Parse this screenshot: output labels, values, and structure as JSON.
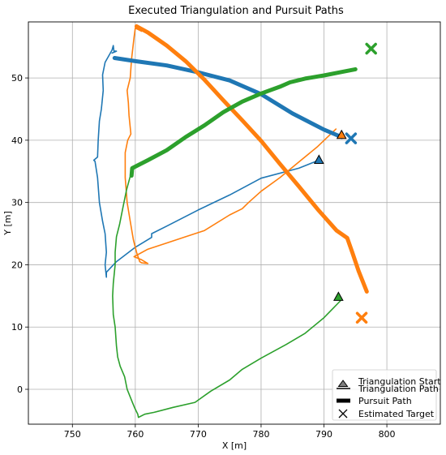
{
  "chart_data": {
    "type": "line",
    "title": "Executed Triangulation and Pursuit Paths",
    "xlabel": "X [m]",
    "ylabel": "Y [m]",
    "xlim": [
      743,
      808.5
    ],
    "ylim": [
      -5.6,
      59
    ],
    "xticks": [
      750,
      760,
      770,
      780,
      790,
      800
    ],
    "yticks": [
      0,
      10,
      20,
      30,
      40,
      50
    ],
    "grid": true,
    "legend_position": "bottom-right",
    "legend": [
      {
        "key": "start",
        "label": "Triangulation Start"
      },
      {
        "key": "tri",
        "label": "Triangulation Path"
      },
      {
        "key": "pursuit",
        "label": "Pursuit Path"
      },
      {
        "key": "target",
        "label": "Estimated Target"
      }
    ],
    "colors": {
      "blue": "#1f77b4",
      "orange": "#ff7f0e",
      "green": "#2ca02c"
    },
    "series": [
      {
        "color": "blue",
        "start": [
          789.2,
          36.8
        ],
        "target": [
          794.3,
          40.3
        ],
        "triangulation_path": [
          [
            789.2,
            36.8
          ],
          [
            786,
            35.5
          ],
          [
            780,
            33.9
          ],
          [
            775,
            31.2
          ],
          [
            770,
            28.8
          ],
          [
            765,
            26.2
          ],
          [
            762.6,
            25
          ],
          [
            762.6,
            24.4
          ],
          [
            760,
            22.8
          ],
          [
            757,
            20.5
          ],
          [
            755.4,
            18.8
          ],
          [
            755.4,
            18
          ],
          [
            755.2,
            20
          ],
          [
            755.4,
            22
          ],
          [
            755.2,
            25
          ],
          [
            754.8,
            27
          ],
          [
            754.3,
            30
          ],
          [
            754,
            34
          ],
          [
            753.6,
            36.6
          ],
          [
            753.4,
            36.8
          ],
          [
            754,
            37.3
          ],
          [
            754.1,
            40
          ],
          [
            754.3,
            43.1
          ],
          [
            754.6,
            45
          ],
          [
            754.9,
            48
          ],
          [
            754.8,
            50.5
          ],
          [
            755.2,
            52.5
          ],
          [
            756.3,
            54.5
          ],
          [
            756.5,
            55.2
          ],
          [
            756.6,
            54.3
          ],
          [
            757,
            54.3
          ],
          [
            756.3,
            54
          ]
        ],
        "pursuit_path": [
          [
            756.7,
            53.2
          ],
          [
            760,
            52.7
          ],
          [
            765,
            52
          ],
          [
            770,
            50.9
          ],
          [
            775,
            49.6
          ],
          [
            780,
            47.4
          ],
          [
            785,
            44.3
          ],
          [
            790,
            41.7
          ],
          [
            792.8,
            40.5
          ]
        ]
      },
      {
        "color": "orange",
        "start": [
          792.8,
          40.8
        ],
        "target": [
          796,
          11.5
        ],
        "triangulation_path": [
          [
            791.9,
            41.8
          ],
          [
            789,
            39
          ],
          [
            786,
            36.5
          ],
          [
            783,
            34
          ],
          [
            780,
            31.8
          ],
          [
            778,
            30
          ],
          [
            777,
            29
          ],
          [
            775,
            28
          ],
          [
            771,
            25.5
          ],
          [
            768,
            24.5
          ],
          [
            765,
            23.5
          ],
          [
            762,
            22.5
          ],
          [
            759.8,
            21.3
          ],
          [
            761,
            20.8
          ],
          [
            762,
            20.2
          ],
          [
            761,
            20.3
          ],
          [
            760.7,
            20.5
          ],
          [
            760.2,
            22
          ],
          [
            759.7,
            24
          ],
          [
            759.2,
            27
          ],
          [
            758.7,
            30
          ],
          [
            758.4,
            34
          ],
          [
            758.4,
            36
          ],
          [
            758.4,
            38
          ],
          [
            758.8,
            40
          ],
          [
            759.3,
            41
          ],
          [
            759,
            44
          ],
          [
            758.9,
            46
          ],
          [
            758.7,
            48
          ],
          [
            759.2,
            50
          ],
          [
            759.4,
            53
          ],
          [
            759.8,
            56.5
          ],
          [
            760,
            58
          ],
          [
            760.4,
            57.8
          ],
          [
            761,
            57.5
          ]
        ],
        "pursuit_path": [
          [
            760.2,
            58.3
          ],
          [
            762,
            57.3
          ],
          [
            765,
            55.2
          ],
          [
            768,
            52.7
          ],
          [
            771,
            49.7
          ],
          [
            774,
            46.4
          ],
          [
            777,
            43.2
          ],
          [
            780,
            39.9
          ],
          [
            783,
            36.2
          ],
          [
            786,
            32.6
          ],
          [
            789,
            28.9
          ],
          [
            792,
            25.5
          ],
          [
            793.7,
            24.3
          ],
          [
            794.5,
            22
          ],
          [
            795.5,
            19
          ],
          [
            796.8,
            15.7
          ]
        ]
      },
      {
        "color": "green",
        "start": [
          792.3,
          14.8
        ],
        "target": [
          797.5,
          54.7
        ],
        "triangulation_path": [
          [
            792.6,
            14.2
          ],
          [
            790,
            11.5
          ],
          [
            787,
            9
          ],
          [
            784,
            7.2
          ],
          [
            780,
            5
          ],
          [
            777,
            3.2
          ],
          [
            775,
            1.5
          ],
          [
            772,
            -0.3
          ],
          [
            769.5,
            -2.1
          ],
          [
            766,
            -2.9
          ],
          [
            763,
            -3.7
          ],
          [
            761.5,
            -4
          ],
          [
            760.5,
            -4.5
          ],
          [
            760.4,
            -4
          ],
          [
            759.9,
            -3
          ],
          [
            759.5,
            -2
          ],
          [
            759.1,
            -1
          ],
          [
            758.7,
            0
          ],
          [
            758.3,
            2
          ],
          [
            757.6,
            3.7
          ],
          [
            757.2,
            5.2
          ],
          [
            757,
            7
          ],
          [
            756.8,
            10
          ],
          [
            756.5,
            12
          ],
          [
            756.4,
            15
          ],
          [
            756.5,
            17
          ],
          [
            756.8,
            20
          ],
          [
            756.8,
            22
          ],
          [
            757,
            24.5
          ],
          [
            757.5,
            26.5
          ],
          [
            758,
            29
          ],
          [
            758.6,
            32
          ],
          [
            759.2,
            34.2
          ],
          [
            759.6,
            35.7
          ]
        ],
        "pursuit_path": [
          [
            759.4,
            34.3
          ],
          [
            759.5,
            35.5
          ],
          [
            762,
            36.8
          ],
          [
            765,
            38.4
          ],
          [
            768,
            40.5
          ],
          [
            771,
            42.4
          ],
          [
            774,
            44.5
          ],
          [
            777,
            46.2
          ],
          [
            780,
            47.5
          ],
          [
            783,
            48.6
          ],
          [
            784.6,
            49.3
          ],
          [
            787,
            49.9
          ],
          [
            790,
            50.4
          ],
          [
            793,
            51
          ],
          [
            795,
            51.4
          ]
        ]
      }
    ]
  }
}
